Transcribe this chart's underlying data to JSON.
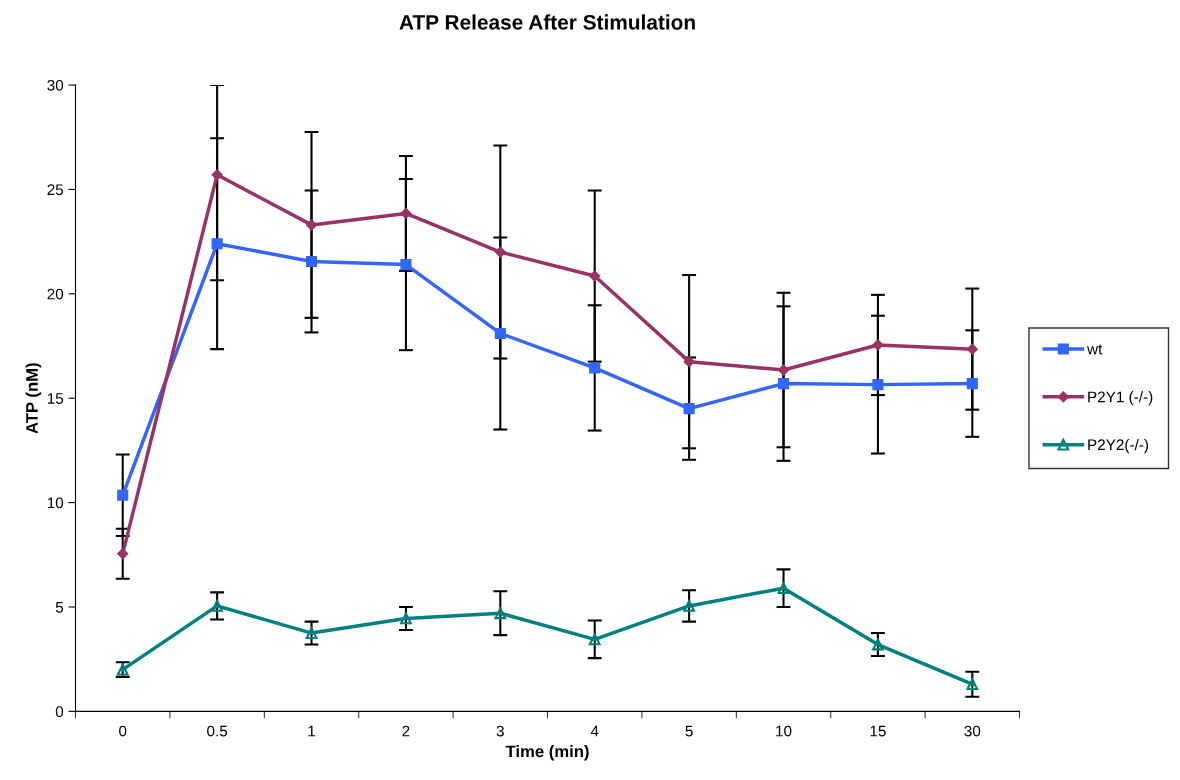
{
  "chart_data": {
    "type": "line",
    "title": "ATP Release After Stimulation",
    "xlabel": "Time (min)",
    "ylabel": "ATP (nM)",
    "categories": [
      "0",
      "0.5",
      "1",
      "2",
      "3",
      "4",
      "5",
      "10",
      "15",
      "30"
    ],
    "ylim": [
      0,
      30
    ],
    "yticks": [
      0,
      5,
      10,
      15,
      20,
      25,
      30
    ],
    "grid": false,
    "legend": "right",
    "series": [
      {
        "name": "wt",
        "color": "#3366ff",
        "marker": "square",
        "values": [
          10.35,
          22.4,
          21.55,
          21.4,
          18.1,
          16.45,
          14.5,
          15.7,
          15.65,
          15.7
        ],
        "errors": [
          1.95,
          5.05,
          3.4,
          4.1,
          4.6,
          3.0,
          2.45,
          3.7,
          3.3,
          2.55
        ]
      },
      {
        "name": "P2Y1 (-/-)",
        "color": "#993366",
        "marker": "diamond",
        "values": [
          7.55,
          25.7,
          23.3,
          23.85,
          22.0,
          20.85,
          16.75,
          16.35,
          17.55,
          17.35
        ],
        "errors": [
          1.2,
          [
            20.65,
            30
          ],
          4.45,
          2.75,
          5.1,
          4.1,
          4.15,
          3.7,
          2.4,
          2.9
        ]
      },
      {
        "name": "P2Y2(-/-)",
        "color": "#008080",
        "marker": "triangle",
        "values": [
          2.0,
          5.05,
          3.75,
          4.45,
          4.7,
          3.45,
          5.05,
          5.9,
          3.2,
          1.3
        ],
        "errors": [
          0.35,
          0.65,
          0.55,
          0.55,
          1.05,
          0.9,
          0.75,
          0.9,
          0.55,
          0.6
        ]
      }
    ]
  }
}
